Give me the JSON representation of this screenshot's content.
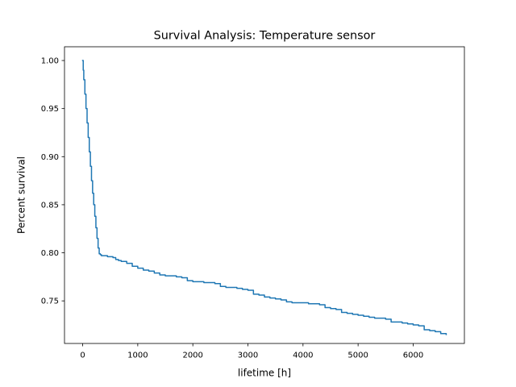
{
  "chart_data": {
    "type": "line",
    "title": "Survival Analysis: Temperature sensor",
    "xlabel": "lifetime [h]",
    "ylabel": "Percent survival",
    "xlim": [
      -330,
      6930
    ],
    "ylim": [
      0.7057,
      1.0143
    ],
    "xticks": [
      0,
      1000,
      2000,
      3000,
      4000,
      5000,
      6000
    ],
    "yticks": [
      0.75,
      0.8,
      0.85,
      0.9,
      0.95,
      1.0
    ],
    "xtick_labels": [
      "0",
      "1000",
      "2000",
      "3000",
      "4000",
      "5000",
      "6000"
    ],
    "ytick_labels": [
      "0.75",
      "0.80",
      "0.85",
      "0.90",
      "0.95",
      "1.00"
    ],
    "grid": false,
    "color": "#1f77b4",
    "series": [
      {
        "x": [
          0,
          10,
          20,
          40,
          60,
          80,
          100,
          120,
          140,
          160,
          180,
          200,
          220,
          240,
          260,
          280,
          300,
          320,
          340,
          360,
          400,
          450,
          500,
          550,
          600,
          650,
          700,
          800,
          900,
          1000,
          1100,
          1200,
          1300,
          1400,
          1500,
          1600,
          1700,
          1800,
          1900,
          2000,
          2100,
          2200,
          2300,
          2400,
          2500,
          2600,
          2700,
          2800,
          2900,
          3000,
          3100,
          3200,
          3300,
          3400,
          3500,
          3600,
          3700,
          3800,
          3900,
          4000,
          4100,
          4200,
          4300,
          4400,
          4500,
          4600,
          4700,
          4800,
          4900,
          5000,
          5100,
          5200,
          5300,
          5400,
          5500,
          5600,
          5700,
          5800,
          5900,
          6000,
          6100,
          6200,
          6300,
          6400,
          6500,
          6600
        ],
        "y": [
          1.0,
          0.99,
          0.98,
          0.965,
          0.95,
          0.935,
          0.92,
          0.905,
          0.89,
          0.875,
          0.862,
          0.85,
          0.838,
          0.826,
          0.815,
          0.805,
          0.799,
          0.798,
          0.797,
          0.797,
          0.797,
          0.796,
          0.796,
          0.795,
          0.793,
          0.792,
          0.791,
          0.789,
          0.786,
          0.784,
          0.782,
          0.781,
          0.779,
          0.777,
          0.776,
          0.776,
          0.775,
          0.774,
          0.771,
          0.77,
          0.77,
          0.769,
          0.769,
          0.768,
          0.765,
          0.764,
          0.764,
          0.763,
          0.762,
          0.761,
          0.757,
          0.756,
          0.754,
          0.753,
          0.752,
          0.751,
          0.749,
          0.748,
          0.748,
          0.748,
          0.747,
          0.747,
          0.746,
          0.743,
          0.742,
          0.741,
          0.738,
          0.737,
          0.736,
          0.735,
          0.734,
          0.733,
          0.732,
          0.732,
          0.731,
          0.728,
          0.728,
          0.727,
          0.726,
          0.725,
          0.724,
          0.72,
          0.719,
          0.718,
          0.716,
          0.715
        ]
      }
    ]
  }
}
